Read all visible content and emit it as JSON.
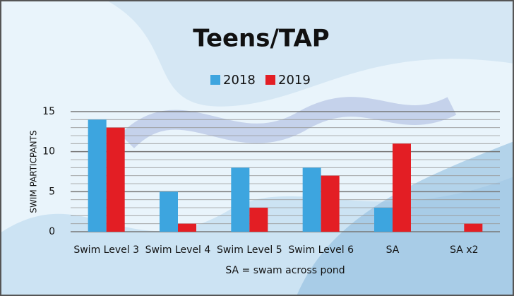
{
  "chart_data": {
    "type": "bar",
    "title": "Teens/TAP",
    "categories": [
      "Swim Level 3",
      "Swim Level 4",
      "Swim Level 5",
      "Swim Level 6",
      "SA",
      "SA x2"
    ],
    "series": [
      {
        "name": "2018",
        "color": "#3da5df",
        "values": [
          14,
          5,
          8,
          8,
          3,
          0
        ]
      },
      {
        "name": "2019",
        "color": "#e31e24",
        "values": [
          13,
          1,
          3,
          7,
          11,
          1
        ]
      }
    ],
    "ylabel": "SWIM PARTICPANTS",
    "xlabel": "SA = swam across pond",
    "ylim": [
      0,
      15
    ],
    "yticks": [
      0,
      5,
      10,
      15
    ],
    "grid": true,
    "minor_grid_step": 1,
    "legend": "top"
  }
}
